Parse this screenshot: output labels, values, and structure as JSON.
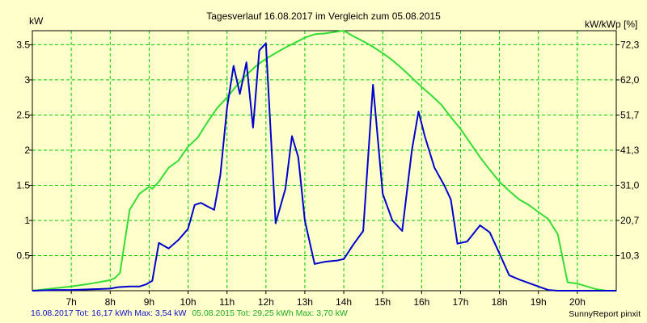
{
  "chart_data": {
    "type": "line",
    "title": "Tagesverlauf 16.08.2017 im Vergleich zum 05.08.2015",
    "ylabel_left": "kW",
    "ylabel_right": "kW/kWp [%]",
    "xlim": [
      6.0,
      21.0
    ],
    "ylim": [
      0,
      3.7
    ],
    "grid": true,
    "x_ticks": [
      7,
      8,
      9,
      10,
      11,
      12,
      13,
      14,
      15,
      16,
      17,
      18,
      19,
      20
    ],
    "x_tick_labels": [
      "7h",
      "8h",
      "9h",
      "10h",
      "11h",
      "12h",
      "13h",
      "14h",
      "15h",
      "16h",
      "17h",
      "18h",
      "19h",
      "20h"
    ],
    "y_ticks_left": [
      0.5,
      1,
      1.5,
      2,
      2.5,
      3,
      3.5
    ],
    "y_tick_labels_left": [
      "0.5",
      "1",
      "1.5",
      "2",
      "2.5",
      "3",
      "3.5"
    ],
    "y_ticks_right": [
      0.5,
      1,
      1.5,
      2,
      2.5,
      3,
      3.5
    ],
    "y_tick_labels_right": [
      "10,3",
      "20,7",
      "31,0",
      "41,3",
      "51,7",
      "62,0",
      "72,3"
    ],
    "series": [
      {
        "name": "16.08.2017",
        "color": "#0000cc",
        "x": [
          6.0,
          6.6,
          7.0,
          7.5,
          8.0,
          8.2,
          8.5,
          8.75,
          8.92,
          9.08,
          9.25,
          9.5,
          9.75,
          10.0,
          10.17,
          10.33,
          10.5,
          10.67,
          10.83,
          11.0,
          11.17,
          11.33,
          11.5,
          11.67,
          11.83,
          12.0,
          12.25,
          12.5,
          12.67,
          12.83,
          13.0,
          13.25,
          13.5,
          13.67,
          13.83,
          14.0,
          14.25,
          14.5,
          14.75,
          15.0,
          15.25,
          15.5,
          15.75,
          15.92,
          16.08,
          16.33,
          16.58,
          16.75,
          16.92,
          17.17,
          17.5,
          17.75,
          18.0,
          18.25,
          18.5,
          18.75,
          19.0,
          19.25,
          19.5,
          19.75,
          20.0,
          20.25,
          20.5,
          20.75,
          21.0
        ],
        "values": [
          0.0,
          0.01,
          0.01,
          0.02,
          0.03,
          0.05,
          0.06,
          0.06,
          0.09,
          0.14,
          0.68,
          0.6,
          0.72,
          0.88,
          1.22,
          1.25,
          1.2,
          1.15,
          1.65,
          2.6,
          3.2,
          2.8,
          3.25,
          2.32,
          3.42,
          3.52,
          0.96,
          1.45,
          2.2,
          1.9,
          1.0,
          0.38,
          0.41,
          0.42,
          0.43,
          0.45,
          0.66,
          0.85,
          2.93,
          1.38,
          1.0,
          0.85,
          2.0,
          2.55,
          2.2,
          1.75,
          1.5,
          1.3,
          0.67,
          0.7,
          0.93,
          0.83,
          0.53,
          0.22,
          0.16,
          0.11,
          0.06,
          0.01,
          0.0,
          0.0,
          0.0,
          0.0,
          0.0,
          0.0,
          0.0
        ]
      },
      {
        "name": "05.08.2015",
        "color": "#33dd33",
        "x": [
          6.0,
          6.5,
          7.0,
          7.5,
          8.0,
          8.12,
          8.25,
          8.5,
          8.75,
          9.0,
          9.08,
          9.25,
          9.5,
          9.75,
          10.0,
          10.25,
          10.5,
          10.75,
          11.0,
          11.25,
          11.5,
          11.75,
          12.0,
          12.25,
          12.5,
          12.75,
          13.0,
          13.25,
          13.5,
          13.75,
          14.0,
          14.25,
          14.5,
          14.75,
          15.0,
          15.25,
          15.5,
          15.75,
          16.0,
          16.25,
          16.5,
          16.75,
          17.0,
          17.25,
          17.5,
          17.75,
          18.0,
          18.25,
          18.5,
          18.75,
          19.0,
          19.25,
          19.5,
          19.75,
          20.0,
          20.25,
          20.5,
          20.75,
          21.0
        ],
        "values": [
          0.0,
          0.03,
          0.06,
          0.1,
          0.15,
          0.18,
          0.25,
          1.15,
          1.38,
          1.48,
          1.45,
          1.55,
          1.75,
          1.85,
          2.05,
          2.18,
          2.4,
          2.6,
          2.75,
          2.92,
          3.07,
          3.2,
          3.3,
          3.38,
          3.46,
          3.53,
          3.6,
          3.65,
          3.66,
          3.68,
          3.7,
          3.62,
          3.55,
          3.47,
          3.38,
          3.28,
          3.16,
          3.03,
          2.9,
          2.78,
          2.65,
          2.47,
          2.3,
          2.1,
          1.9,
          1.72,
          1.55,
          1.42,
          1.3,
          1.22,
          1.12,
          1.02,
          0.8,
          0.12,
          0.1,
          0.06,
          0.02,
          0.0,
          0.0
        ]
      }
    ]
  },
  "footer": {
    "series1_summary": "16.08.2017 Tot: 16,17 kWh Max: 3,54 kW",
    "series2_summary": "05.08.2015 Tot: 29,25 kWh Max: 3,70 kW",
    "brand": "SunnyReport pinxit"
  },
  "colors": {
    "background": "#ffffcc",
    "grid": "#00cc00",
    "axis": "#000000"
  }
}
